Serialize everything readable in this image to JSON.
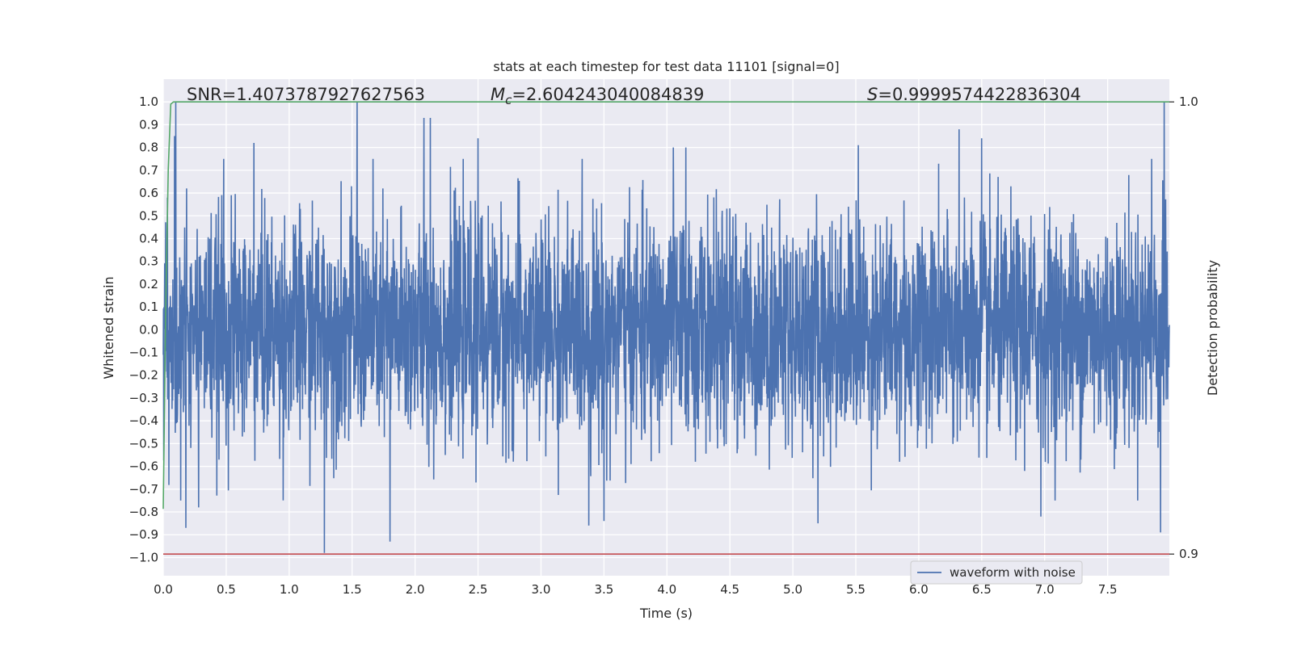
{
  "chart_data": {
    "type": "line",
    "title": "stats at each timestep for test data 11101 [signal=0]",
    "xlabel": "Time (s)",
    "ylabel": "Whitened strain",
    "y2label": "Detection probability",
    "xlim": [
      0.0,
      7.99
    ],
    "ylim": [
      -1.08,
      1.1
    ],
    "y2lim": [
      0.9,
      1.0
    ],
    "x_ticks": [
      0.0,
      0.5,
      1.0,
      1.5,
      2.0,
      2.5,
      3.0,
      3.5,
      4.0,
      4.5,
      5.0,
      5.5,
      6.0,
      6.5,
      7.0,
      7.5
    ],
    "x_tick_labels": [
      "0.0",
      "0.5",
      "1.0",
      "1.5",
      "2.0",
      "2.5",
      "3.0",
      "3.5",
      "4.0",
      "4.5",
      "5.0",
      "5.5",
      "6.0",
      "6.5",
      "7.0",
      "7.5"
    ],
    "y_ticks": [
      1.0,
      0.9,
      0.8,
      0.7,
      0.6,
      0.5,
      0.4,
      0.3,
      0.2,
      0.1,
      0.0,
      -0.1,
      -0.2,
      -0.3,
      -0.4,
      -0.5,
      -0.6,
      -0.7,
      -0.8,
      -0.9,
      -1.0
    ],
    "y_tick_labels": [
      "1.0",
      "0.9",
      "0.8",
      "0.7",
      "0.6",
      "0.5",
      "0.4",
      "0.3",
      "0.2",
      "0.1",
      "0.0",
      "−0.1",
      "−0.2",
      "−0.3",
      "−0.4",
      "−0.5",
      "−0.6",
      "−0.7",
      "−0.8",
      "−0.9",
      "−1.0"
    ],
    "y2_ticks": [
      1.0,
      0.9
    ],
    "y2_tick_labels": [
      "1.0",
      "0.9"
    ],
    "grid": true,
    "legend_position": "lower-right",
    "annotations": {
      "snr": "SNR=1.4073787927627563",
      "mc_symbol": "M",
      "mc_subscript": "c",
      "mc_value": "=2.604243040084839",
      "s_symbol": "S",
      "s_value": "=0.9999574422836304"
    },
    "series": [
      {
        "name": "waveform with noise",
        "axis": "left",
        "color": "#4c72b0",
        "description_samples": 4096,
        "noise_scale": 0.24,
        "spikes": [
          {
            "x": 0.09,
            "y": 0.85
          },
          {
            "x": 0.1,
            "y": -0.97
          },
          {
            "x": 0.1,
            "y": 1.0
          },
          {
            "x": 0.18,
            "y": -0.87
          },
          {
            "x": 0.28,
            "y": -0.78
          },
          {
            "x": 0.48,
            "y": 0.75
          },
          {
            "x": 0.72,
            "y": 0.82
          },
          {
            "x": 1.28,
            "y": -0.98
          },
          {
            "x": 1.54,
            "y": 1.0
          },
          {
            "x": 1.8,
            "y": -0.93
          },
          {
            "x": 2.07,
            "y": 0.93
          },
          {
            "x": 2.12,
            "y": 0.93
          },
          {
            "x": 2.5,
            "y": 0.84
          },
          {
            "x": 3.38,
            "y": -0.86
          },
          {
            "x": 3.5,
            "y": -0.84
          },
          {
            "x": 4.05,
            "y": 0.8
          },
          {
            "x": 4.15,
            "y": 0.8
          },
          {
            "x": 5.2,
            "y": -0.85
          },
          {
            "x": 5.52,
            "y": 0.81
          },
          {
            "x": 6.32,
            "y": 0.88
          },
          {
            "x": 6.5,
            "y": 0.84
          },
          {
            "x": 6.97,
            "y": -0.82
          },
          {
            "x": 7.85,
            "y": 0.75
          },
          {
            "x": 7.92,
            "y": -0.89
          },
          {
            "x": 7.95,
            "y": 1.0
          }
        ]
      },
      {
        "name": "",
        "axis": "right",
        "color": "#55a868",
        "x": [
          0.0,
          0.02,
          0.04,
          0.06,
          0.08,
          0.1,
          1.0,
          7.99
        ],
        "y": [
          0.91,
          0.955,
          0.985,
          0.9995,
          0.99999,
          1.0,
          1.0,
          1.0
        ]
      },
      {
        "name": "",
        "axis": "right",
        "color": "#c44e52",
        "x": [
          0.0,
          7.99
        ],
        "y": [
          0.9,
          0.9
        ]
      }
    ]
  }
}
